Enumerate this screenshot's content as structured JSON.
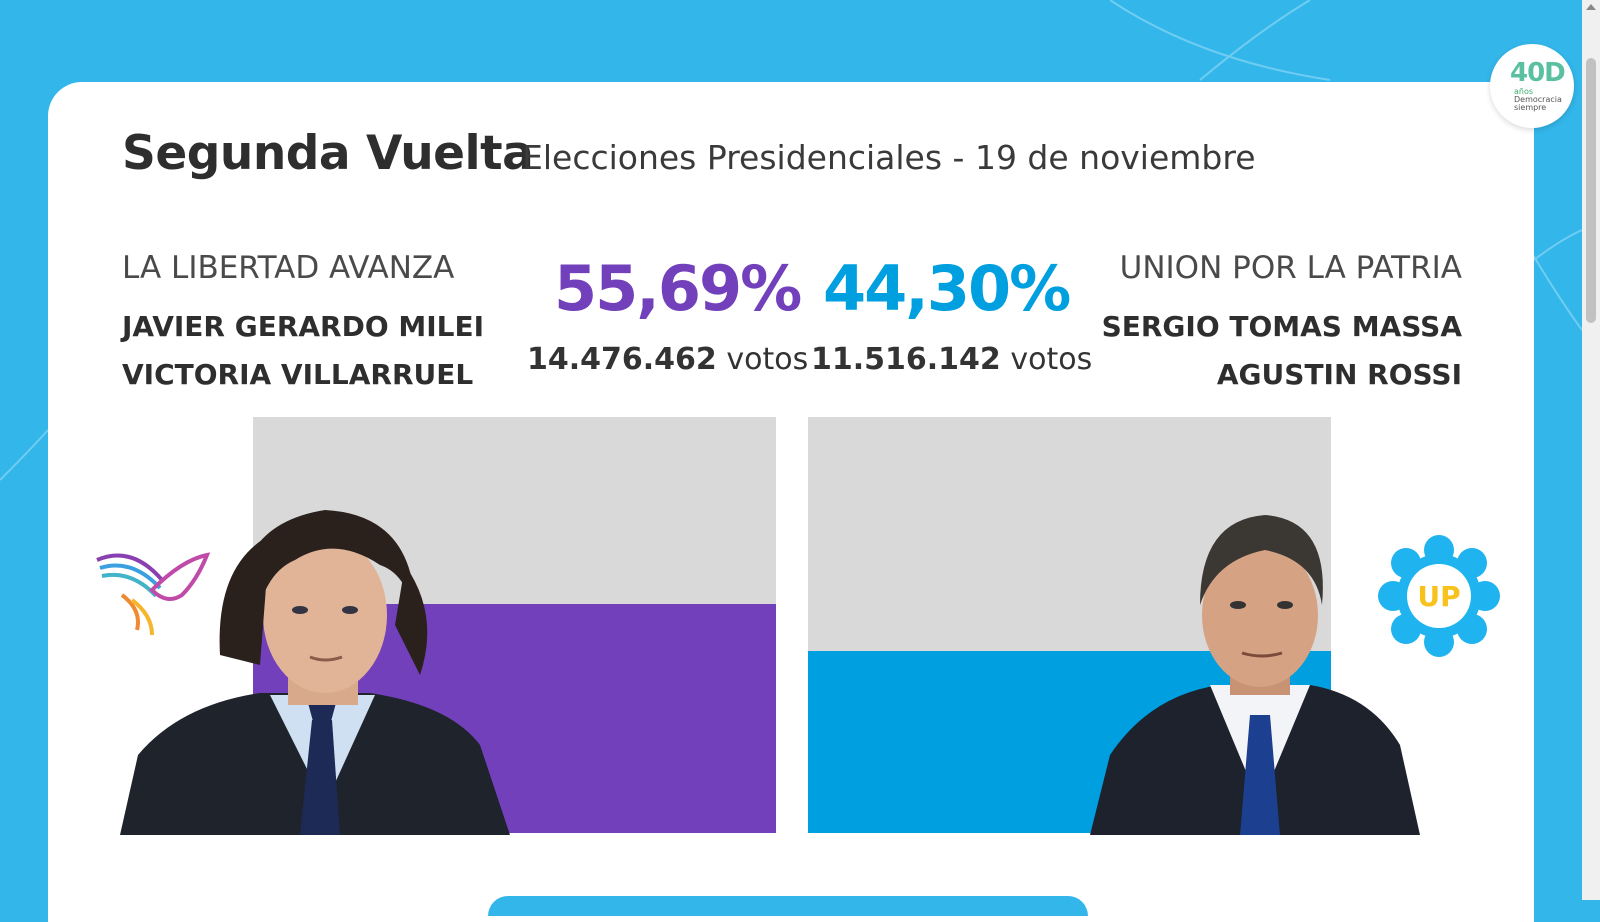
{
  "header": {
    "title": "Segunda Vuelta",
    "subtitle": "Elecciones Presidenciales - 19 de noviembre"
  },
  "badge": {
    "number": "40D",
    "lines": [
      "años",
      "Democracia",
      "siempre"
    ]
  },
  "candidates": [
    {
      "party": "LA LIBERTAD AVANZA",
      "president": "JAVIER GERARDO MILEI",
      "vice": "VICTORIA VILLARRUEL",
      "percent": "55,69%",
      "votes_number": "14.476.462",
      "votes_label": "votos",
      "share": 0.5569,
      "color": "#7240bb",
      "icon": "bird-logo-icon"
    },
    {
      "party": "UNION POR LA PATRIA",
      "president": "SERGIO TOMAS MASSA",
      "vice": "AGUSTIN ROSSI",
      "percent": "44,30%",
      "votes_number": "11.516.142",
      "votes_label": "votos",
      "share": 0.443,
      "color": "#009fe0",
      "icon": "sun-up-logo-icon",
      "icon_text": "UP"
    }
  ],
  "colors": {
    "background": "#33b6ea",
    "card": "#ffffff",
    "track": "#d9d9d9"
  }
}
